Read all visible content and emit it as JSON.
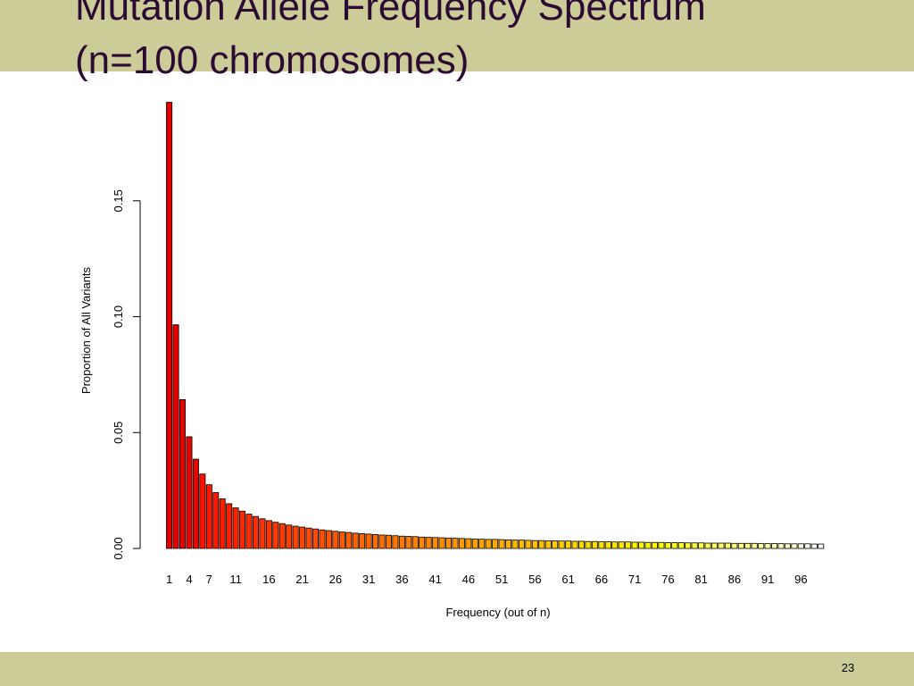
{
  "slide": {
    "title_line1": "Mutation Allele Frequency Spectrum",
    "title_line2": "(n=100 chromosomes)",
    "page_number": "23",
    "band_color": "#cccc99",
    "title_color": "#2b0a33"
  },
  "chart_data": {
    "type": "bar",
    "title": "",
    "xlabel": "Frequency (out of n)",
    "ylabel": "Proportion of All Variants",
    "ylim": [
      0,
      0.19
    ],
    "y_ticks": [
      0.0,
      0.05,
      0.1,
      0.15
    ],
    "y_tick_labels": [
      "0.00",
      "0.05",
      "0.10",
      "0.15"
    ],
    "grid": false,
    "legend": "none",
    "colormap": "heat (red to yellow to white)",
    "categories": [
      1,
      2,
      3,
      4,
      5,
      6,
      7,
      8,
      9,
      10,
      11,
      12,
      13,
      14,
      15,
      16,
      17,
      18,
      19,
      20,
      21,
      22,
      23,
      24,
      25,
      26,
      27,
      28,
      29,
      30,
      31,
      32,
      33,
      34,
      35,
      36,
      37,
      38,
      39,
      40,
      41,
      42,
      43,
      44,
      45,
      46,
      47,
      48,
      49,
      50,
      51,
      52,
      53,
      54,
      55,
      56,
      57,
      58,
      59,
      60,
      61,
      62,
      63,
      64,
      65,
      66,
      67,
      68,
      69,
      70,
      71,
      72,
      73,
      74,
      75,
      76,
      77,
      78,
      79,
      80,
      81,
      82,
      83,
      84,
      85,
      86,
      87,
      88,
      89,
      90,
      91,
      92,
      93,
      94,
      95,
      96,
      97,
      98,
      99
    ],
    "x_tick_labels": [
      "1",
      "4",
      "7",
      "11",
      "16",
      "21",
      "26",
      "31",
      "36",
      "41",
      "46",
      "51",
      "56",
      "61",
      "66",
      "71",
      "76",
      "81",
      "86",
      "91",
      "96"
    ],
    "values": [
      0.1925,
      0.0965,
      0.0642,
      0.0482,
      0.0385,
      0.0321,
      0.0275,
      0.0241,
      0.0214,
      0.0193,
      0.0175,
      0.0161,
      0.0148,
      0.0138,
      0.0128,
      0.012,
      0.0113,
      0.0107,
      0.0101,
      0.0096,
      0.0092,
      0.0088,
      0.0084,
      0.008,
      0.0077,
      0.0074,
      0.0071,
      0.0069,
      0.0066,
      0.0064,
      0.0062,
      0.006,
      0.0058,
      0.0057,
      0.0055,
      0.0053,
      0.0052,
      0.0051,
      0.0049,
      0.0048,
      0.0047,
      0.0046,
      0.0045,
      0.0044,
      0.0043,
      0.0042,
      0.0041,
      0.004,
      0.0039,
      0.0039,
      0.0038,
      0.0037,
      0.0036,
      0.0036,
      0.0035,
      0.0034,
      0.0034,
      0.0033,
      0.0033,
      0.0032,
      0.0032,
      0.0031,
      0.0031,
      0.003,
      0.003,
      0.0029,
      0.0029,
      0.0028,
      0.0028,
      0.0028,
      0.0027,
      0.0027,
      0.0026,
      0.0026,
      0.0026,
      0.0025,
      0.0025,
      0.0025,
      0.0024,
      0.0024,
      0.0024,
      0.0023,
      0.0023,
      0.0023,
      0.0023,
      0.0022,
      0.0022,
      0.0022,
      0.0022,
      0.0021,
      0.0021,
      0.0021,
      0.0021,
      0.002,
      0.002,
      0.002,
      0.002,
      0.0019,
      0.0019
    ]
  }
}
